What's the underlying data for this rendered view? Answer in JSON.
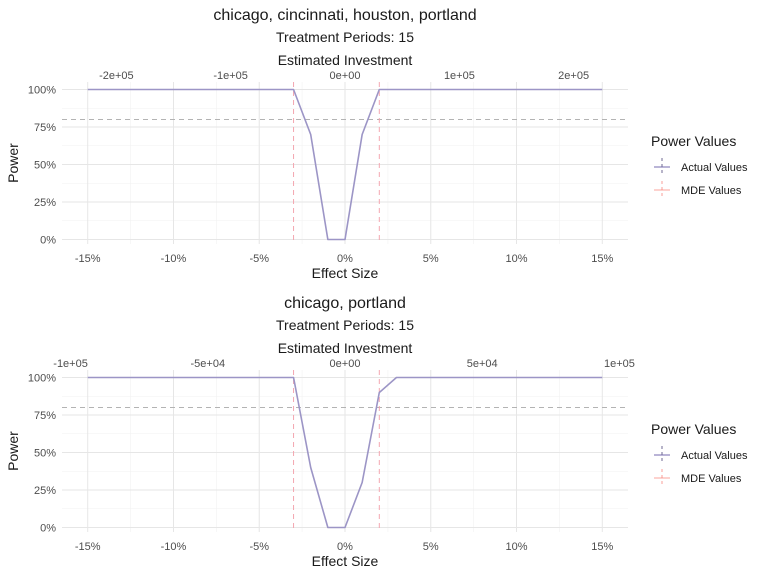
{
  "chart_data": [
    {
      "type": "line",
      "title": "chicago, cincinnati, houston, portland",
      "subtitle": "Treatment Periods: 15",
      "top_axis_title": "Estimated Investment",
      "top_ticks": [
        "-2e+05",
        "-1e+05",
        "0e+00",
        "1e+05",
        "2e+05"
      ],
      "top_tick_values": [
        -0.1333,
        -0.0667,
        0,
        0.0667,
        0.1333
      ],
      "xlabel": "Effect Size",
      "ylabel": "Power",
      "xlim": [
        -0.165,
        0.165
      ],
      "ylim": [
        -0.03,
        1.05
      ],
      "x_ticks": [
        "-15%",
        "-10%",
        "-5%",
        "0%",
        "5%",
        "10%",
        "15%"
      ],
      "x_tick_values": [
        -0.15,
        -0.1,
        -0.05,
        0,
        0.05,
        0.1,
        0.15
      ],
      "y_ticks": [
        "0%",
        "25%",
        "50%",
        "75%",
        "100%"
      ],
      "y_tick_values": [
        0,
        0.25,
        0.5,
        0.75,
        1.0
      ],
      "threshold": 0.8,
      "mde": [
        -0.03,
        0.02
      ],
      "series": [
        {
          "name": "Actual Values",
          "x": [
            -0.15,
            -0.03,
            -0.02,
            -0.01,
            0,
            0.01,
            0.02,
            0.15
          ],
          "y": [
            1,
            1,
            0.7,
            0,
            0,
            0.7,
            1,
            1
          ]
        }
      ],
      "legend": {
        "title": "Power Values",
        "items": [
          "Actual Values",
          "MDE Values"
        ],
        "position": "right"
      }
    },
    {
      "type": "line",
      "title": "chicago, portland",
      "subtitle": "Treatment Periods: 15",
      "top_axis_title": "Estimated Investment",
      "top_ticks": [
        "-1e+05",
        "-5e+04",
        "0e+00",
        "5e+04",
        "1e+05"
      ],
      "top_tick_values": [
        -0.16,
        -0.08,
        0,
        0.08,
        0.16
      ],
      "xlabel": "Effect Size",
      "ylabel": "Power",
      "xlim": [
        -0.165,
        0.165
      ],
      "ylim": [
        -0.03,
        1.05
      ],
      "x_ticks": [
        "-15%",
        "-10%",
        "-5%",
        "0%",
        "5%",
        "10%",
        "15%"
      ],
      "x_tick_values": [
        -0.15,
        -0.1,
        -0.05,
        0,
        0.05,
        0.1,
        0.15
      ],
      "y_ticks": [
        "0%",
        "25%",
        "50%",
        "75%",
        "100%"
      ],
      "y_tick_values": [
        0,
        0.25,
        0.5,
        0.75,
        1.0
      ],
      "threshold": 0.8,
      "mde": [
        -0.03,
        0.02
      ],
      "series": [
        {
          "name": "Actual Values",
          "x": [
            -0.15,
            -0.03,
            -0.02,
            -0.01,
            0,
            0.01,
            0.02,
            0.03,
            0.15
          ],
          "y": [
            1,
            1,
            0.4,
            0,
            0,
            0.3,
            0.9,
            1,
            1
          ]
        }
      ],
      "legend": {
        "title": "Power Values",
        "items": [
          "Actual Values",
          "MDE Values"
        ],
        "position": "right"
      }
    }
  ],
  "colors": {
    "line": "#9c95c6",
    "mde": "#f4a6b0",
    "threshold": "#b3b3b3",
    "legend_mde": "#f8766d"
  }
}
